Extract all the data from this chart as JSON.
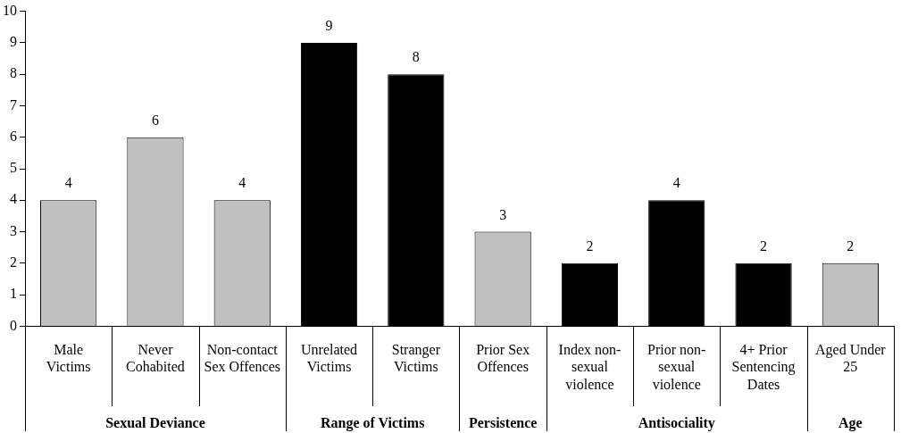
{
  "chart_data": {
    "type": "bar",
    "categories": [
      "Male Victims",
      "Never Cohabited",
      "Non-contact Sex Offences",
      "Unrelated Victims",
      "Stranger Victims",
      "Prior Sex Offences",
      "Index non-sexual violence",
      "Prior non-sexual violence",
      "4+ Prior Sentencing Dates",
      "Aged Under 25"
    ],
    "values": [
      4,
      6,
      4,
      9,
      8,
      3,
      2,
      4,
      2,
      2
    ],
    "colors": [
      "#c0c0c0",
      "#c0c0c0",
      "#c0c0c0",
      "#000000",
      "#000000",
      "#c0c0c0",
      "#000000",
      "#000000",
      "#000000",
      "#c0c0c0"
    ],
    "ylim": [
      0,
      10
    ],
    "yticks": [
      0,
      1,
      2,
      3,
      4,
      5,
      6,
      7,
      8,
      9,
      10
    ],
    "data_labels": true,
    "grid": false,
    "legend": false,
    "annotations": [
      "Sexual Deviance",
      "Range of Victims",
      "Persistence",
      "Antisociality",
      "Age"
    ]
  }
}
